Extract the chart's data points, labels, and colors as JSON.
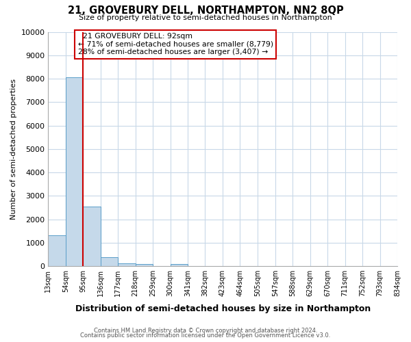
{
  "title": "21, GROVEBURY DELL, NORTHAMPTON, NN2 8QP",
  "subtitle": "Size of property relative to semi-detached houses in Northampton",
  "xlabel": "Distribution of semi-detached houses by size in Northampton",
  "ylabel": "Number of semi-detached properties",
  "bin_labels": [
    "13sqm",
    "54sqm",
    "95sqm",
    "136sqm",
    "177sqm",
    "218sqm",
    "259sqm",
    "300sqm",
    "341sqm",
    "382sqm",
    "423sqm",
    "464sqm",
    "505sqm",
    "547sqm",
    "588sqm",
    "629sqm",
    "670sqm",
    "711sqm",
    "752sqm",
    "793sqm",
    "834sqm"
  ],
  "bar_values": [
    1300,
    8050,
    2550,
    390,
    130,
    100,
    0,
    100,
    0,
    0,
    0,
    0,
    0,
    0,
    0,
    0,
    0,
    0,
    0,
    0
  ],
  "bar_color": "#c5d9ea",
  "bar_edge_color": "#5a9ec9",
  "property_line_x": 95,
  "property_line_color": "#cc0000",
  "ylim": [
    0,
    10000
  ],
  "yticks": [
    0,
    1000,
    2000,
    3000,
    4000,
    5000,
    6000,
    7000,
    8000,
    9000,
    10000
  ],
  "annotation_title": "21 GROVEBURY DELL: 92sqm",
  "annotation_line1": "← 71% of semi-detached houses are smaller (8,779)",
  "annotation_line2": "28% of semi-detached houses are larger (3,407) →",
  "annotation_box_color": "#ffffff",
  "annotation_box_edge": "#cc0000",
  "footer1": "Contains HM Land Registry data © Crown copyright and database right 2024.",
  "footer2": "Contains public sector information licensed under the Open Government Licence v3.0.",
  "background_color": "#ffffff",
  "grid_color": "#c8d8e8",
  "bin_width": 41
}
